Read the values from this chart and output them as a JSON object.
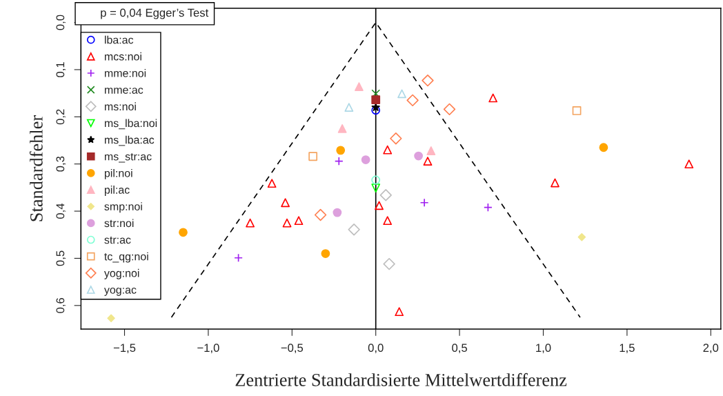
{
  "chart_data": {
    "type": "scatter",
    "xlabel": "Zentrierte Standardisierte Mittelwertdifferenz",
    "ylabel": "Standardfehler",
    "annotations": [
      "p = 0,04 Egger’s Test"
    ],
    "xlim": [
      -1.76,
      2.06
    ],
    "ylim": [
      0.65,
      -0.03
    ],
    "xticks": [
      {
        "value": -1.5,
        "label": "−1,5"
      },
      {
        "value": -1.0,
        "label": "−1,0"
      },
      {
        "value": -0.5,
        "label": "−0,5"
      },
      {
        "value": 0.0,
        "label": "0,0"
      },
      {
        "value": 0.5,
        "label": "0,5"
      },
      {
        "value": 1.0,
        "label": "1,0"
      },
      {
        "value": 1.5,
        "label": "1,5"
      },
      {
        "value": 2.0,
        "label": "2,0"
      }
    ],
    "yticks": [
      {
        "value": 0.0,
        "label": "0,0"
      },
      {
        "value": 0.1,
        "label": "0,1"
      },
      {
        "value": 0.2,
        "label": "0,2"
      },
      {
        "value": 0.3,
        "label": "0,3"
      },
      {
        "value": 0.4,
        "label": "0,4"
      },
      {
        "value": 0.5,
        "label": "0,5"
      },
      {
        "value": 0.6,
        "label": "0,6"
      }
    ],
    "grid": false,
    "legend": "top left",
    "ref_lines": [
      {
        "axis": "x",
        "value": 0.0,
        "color": "#000000",
        "line_style": "solid"
      }
    ],
    "series": [
      {
        "type": "line",
        "line_style": "dashed",
        "marker": "none",
        "color": "#000000",
        "x": [
          -1.22,
          0.0,
          1.22
        ],
        "values": [
          0.625,
          0.0,
          0.625
        ]
      },
      {
        "name": "lba:ac",
        "marker": "circle-open",
        "color": "#0000ff",
        "x": [
          0.0
        ],
        "values": [
          0.186
        ]
      },
      {
        "name": "mcs:noi",
        "marker": "triangle-open",
        "color": "#ff0000",
        "x": [
          0.7,
          0.07,
          0.31,
          0.02,
          0.07,
          -0.46,
          0.14,
          -0.62,
          -0.54,
          -0.75,
          -0.53,
          1.07,
          1.87
        ],
        "values": [
          0.16,
          0.27,
          0.294,
          0.388,
          0.42,
          0.42,
          0.613,
          0.341,
          0.382,
          0.425,
          0.425,
          0.34,
          0.3
        ]
      },
      {
        "name": "mme:noi",
        "marker": "plus",
        "color": "#a020f0",
        "x": [
          -0.22,
          0.29,
          0.67,
          -0.82
        ],
        "values": [
          0.294,
          0.382,
          0.392,
          0.499
        ]
      },
      {
        "name": "mme:ac",
        "marker": "cross",
        "color": "#228b22",
        "x": [
          0.0
        ],
        "values": [
          0.151
        ]
      },
      {
        "name": "ms:noi",
        "marker": "diamond-open",
        "color": "#bebebe",
        "x": [
          0.06,
          -0.13,
          0.08
        ],
        "values": [
          0.366,
          0.439,
          0.512
        ]
      },
      {
        "name": "ms_lba:noi",
        "marker": "triangle-down-open",
        "color": "#00ff00",
        "x": [
          0.0
        ],
        "values": [
          0.351
        ]
      },
      {
        "name": "ms_lba:ac",
        "marker": "star",
        "color": "#000000",
        "x": [
          0.0
        ],
        "values": [
          0.18
        ]
      },
      {
        "name": "ms_str:ac",
        "marker": "square",
        "color": "#a52a2a",
        "x": [
          0.0
        ],
        "values": [
          0.164
        ]
      },
      {
        "name": "pil:noi",
        "marker": "circle",
        "color": "#ffa500",
        "x": [
          -0.21,
          -0.3,
          -1.15,
          1.36
        ],
        "values": [
          0.271,
          0.49,
          0.445,
          0.265
        ]
      },
      {
        "name": "pil:ac",
        "marker": "triangle",
        "color": "#ffb6c1",
        "x": [
          -0.1,
          -0.2,
          0.33
        ],
        "values": [
          0.136,
          0.225,
          0.272
        ]
      },
      {
        "name": "smp:noi",
        "marker": "diamond",
        "color": "#f0e68c",
        "x": [
          1.23,
          -1.58
        ],
        "values": [
          0.455,
          0.627
        ]
      },
      {
        "name": "str:noi",
        "marker": "circle",
        "color": "#dda0dd",
        "x": [
          -0.06,
          0.255,
          -0.23
        ],
        "values": [
          0.291,
          0.283,
          0.403
        ]
      },
      {
        "name": "str:ac",
        "marker": "circle-open",
        "color": "#7fffd4",
        "x": [
          0.0
        ],
        "values": [
          0.334
        ]
      },
      {
        "name": "tc_qg:noi",
        "marker": "square-open",
        "color": "#f4a460",
        "x": [
          -0.375,
          1.2
        ],
        "values": [
          0.284,
          0.187
        ]
      },
      {
        "name": "yog:noi",
        "marker": "diamond-open",
        "color": "#ff7f50",
        "x": [
          0.31,
          0.22,
          0.44,
          0.12,
          -0.33
        ],
        "values": [
          0.123,
          0.165,
          0.184,
          0.246,
          0.408
        ]
      },
      {
        "name": "yog:ac",
        "marker": "triangle-open",
        "color": "#add8e6",
        "x": [
          0.156,
          -0.16
        ],
        "values": [
          0.151,
          0.18
        ]
      }
    ]
  }
}
